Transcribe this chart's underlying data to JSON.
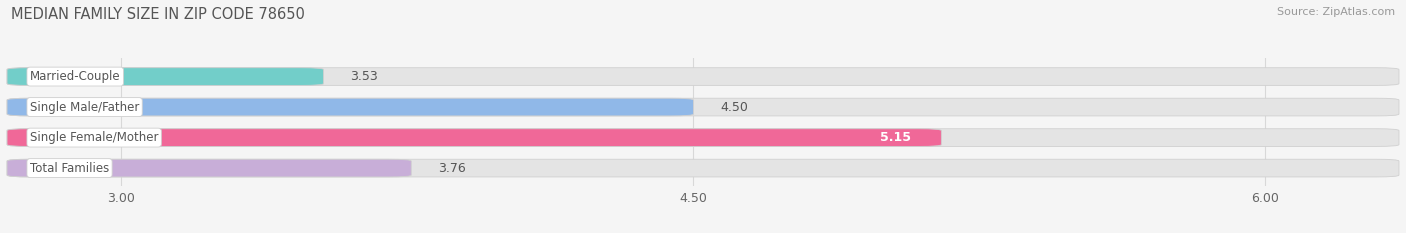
{
  "title": "MEDIAN FAMILY SIZE IN ZIP CODE 78650",
  "source": "Source: ZipAtlas.com",
  "categories": [
    "Married-Couple",
    "Single Male/Father",
    "Single Female/Mother",
    "Total Families"
  ],
  "values": [
    3.53,
    4.5,
    5.15,
    3.76
  ],
  "bar_colors": [
    "#72cec9",
    "#90b8e8",
    "#f06898",
    "#c8aed8"
  ],
  "value_inside": [
    false,
    false,
    true,
    false
  ],
  "xlim_min": 2.7,
  "xlim_max": 6.35,
  "x_axis_start": 2.7,
  "xticks": [
    3.0,
    4.5,
    6.0
  ],
  "xtick_labels": [
    "3.00",
    "4.50",
    "6.00"
  ],
  "background_color": "#f5f5f5",
  "bar_bg_color": "#e4e4e4",
  "title_fontsize": 10.5,
  "source_fontsize": 8,
  "tick_fontsize": 9,
  "value_fontsize": 9,
  "category_fontsize": 8.5,
  "bar_height": 0.58,
  "bar_sep": 0.22,
  "bar_edge_color": "#d0d0d0",
  "grid_color": "#d8d8d8",
  "label_box_color": "#ffffff",
  "label_text_color": "#555555",
  "value_dark_color": "#555555",
  "value_light_color": "#ffffff"
}
